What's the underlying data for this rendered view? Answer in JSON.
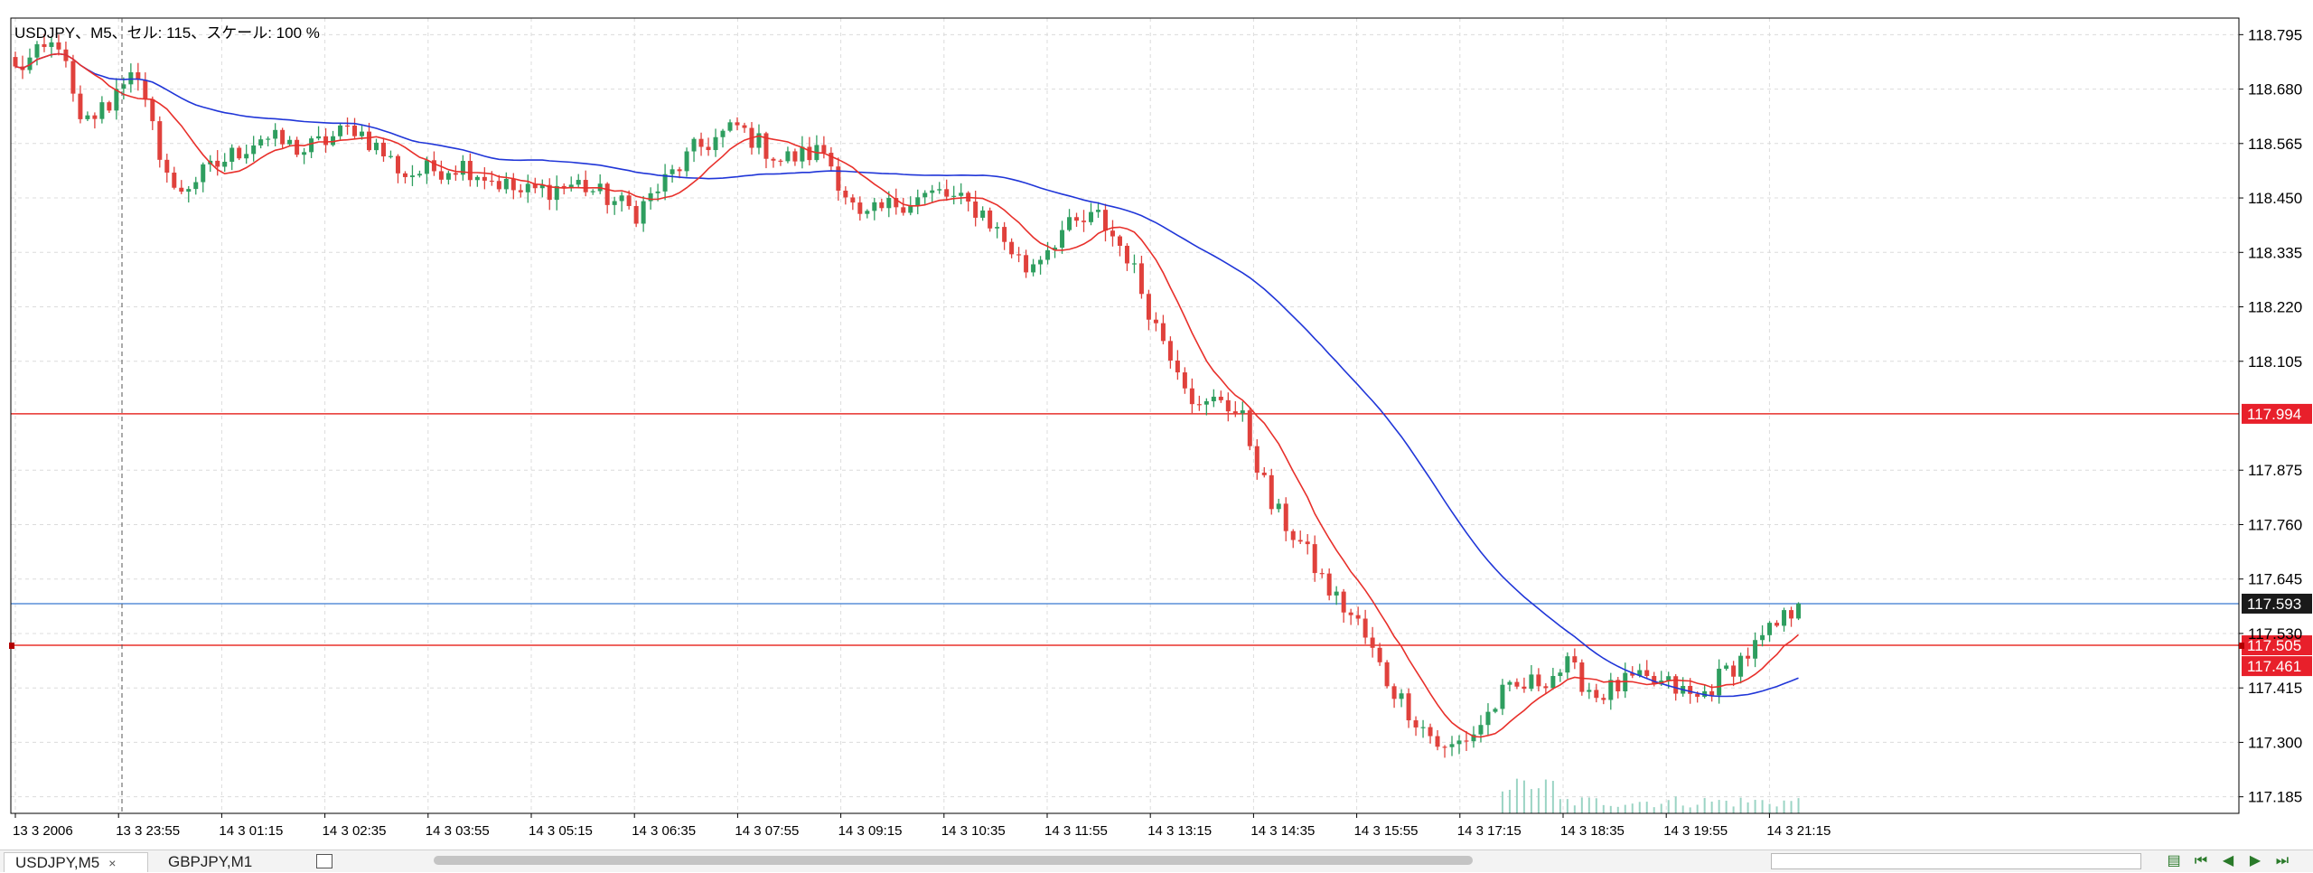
{
  "chart_info": "USDJPY、M5、セル: 115、スケール: 100 %",
  "colors": {
    "bull": "#2e9e5f",
    "bear": "#e0413c",
    "ma_fast": "#e8302b",
    "ma_slow": "#2036d8",
    "hline_red": "#e8302b",
    "hline_blue": "#5a8fd8",
    "volume": "#9bd4c4",
    "grid": "#dcdcdc"
  },
  "tabs": [
    {
      "label": "USDJPY,M5",
      "close": "×",
      "active": true
    },
    {
      "label": "GBPJPY,M1",
      "active": false
    }
  ],
  "chart_data": {
    "type": "candlestick",
    "title": "USDJPY、M5、セル: 115、スケール: 100 %",
    "symbol": "USDJPY",
    "timeframe": "M5",
    "ylim": [
      117.15,
      118.83
    ],
    "grid": true,
    "y_ticks": [
      "118.795",
      "118.680",
      "118.565",
      "118.450",
      "118.335",
      "118.220",
      "118.105",
      "117.875",
      "117.760",
      "117.645",
      "117.530",
      "117.415",
      "117.300",
      "117.185"
    ],
    "x_ticks": [
      "13 3 2006",
      "13 3 23:55",
      "14 3 01:15",
      "14 3 02:35",
      "14 3 03:55",
      "14 3 05:15",
      "14 3 06:35",
      "14 3 07:55",
      "14 3 09:15",
      "14 3 10:35",
      "14 3 11:55",
      "14 3 13:15",
      "14 3 14:35",
      "14 3 15:55",
      "14 3 17:15",
      "14 3 18:35",
      "14 3 19:55",
      "14 3 21:15"
    ],
    "horizontal_lines": [
      {
        "price": 117.994,
        "label": "117.994",
        "color": "red"
      },
      {
        "price": 117.593,
        "label": "117.593",
        "color": "blue"
      },
      {
        "price": 117.505,
        "label": "117.505",
        "color": "red"
      },
      {
        "price": 117.461,
        "label": "117.461",
        "color": "red"
      }
    ],
    "close_anchors": [
      [
        0,
        118.72
      ],
      [
        6,
        118.78
      ],
      [
        9,
        118.6
      ],
      [
        13,
        118.65
      ],
      [
        16,
        118.73
      ],
      [
        22,
        118.46
      ],
      [
        28,
        118.52
      ],
      [
        34,
        118.58
      ],
      [
        40,
        118.55
      ],
      [
        47,
        118.6
      ],
      [
        54,
        118.5
      ],
      [
        62,
        118.52
      ],
      [
        70,
        118.46
      ],
      [
        78,
        118.48
      ],
      [
        86,
        118.42
      ],
      [
        94,
        118.55
      ],
      [
        100,
        118.6
      ],
      [
        106,
        118.53
      ],
      [
        112,
        118.55
      ],
      [
        117,
        118.4
      ],
      [
        122,
        118.44
      ],
      [
        128,
        118.46
      ],
      [
        134,
        118.42
      ],
      [
        140,
        118.3
      ],
      [
        145,
        118.38
      ],
      [
        150,
        118.41
      ],
      [
        154,
        118.33
      ],
      [
        158,
        118.18
      ],
      [
        161,
        118.1
      ],
      [
        164,
        118.0
      ],
      [
        167,
        118.03
      ],
      [
        170,
        117.98
      ],
      [
        174,
        117.8
      ],
      [
        178,
        117.72
      ],
      [
        182,
        117.62
      ],
      [
        186,
        117.55
      ],
      [
        190,
        117.43
      ],
      [
        194,
        117.35
      ],
      [
        198,
        117.28
      ],
      [
        202,
        117.32
      ],
      [
        206,
        117.4
      ],
      [
        211,
        117.43
      ],
      [
        215,
        117.46
      ],
      [
        219,
        117.4
      ],
      [
        224,
        117.43
      ],
      [
        229,
        117.42
      ],
      [
        233,
        117.39
      ],
      [
        237,
        117.45
      ],
      [
        241,
        117.5
      ],
      [
        245,
        117.56
      ],
      [
        247,
        117.593
      ]
    ],
    "candle_count": 248,
    "volume_from_index": 206,
    "ma_fast_period": 10,
    "ma_slow_period": 48
  }
}
